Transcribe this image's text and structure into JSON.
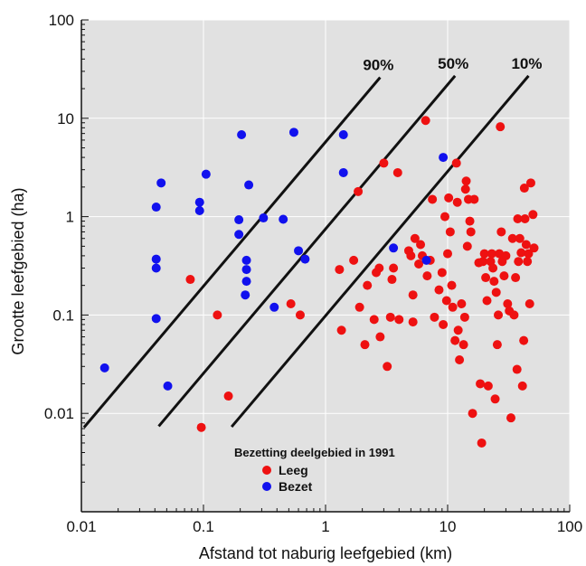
{
  "chart_data": {
    "type": "scatter",
    "xlabel": "Afstand tot naburig leefgebied (km)",
    "ylabel": "Grootte leefgebied (ha)",
    "x_scale": "log",
    "y_scale": "log",
    "xlim": [
      0.01,
      100
    ],
    "ylim": [
      0.001,
      100
    ],
    "x_ticks": [
      "0.01",
      "0.1",
      "1",
      "10",
      "100"
    ],
    "y_ticks": [
      "0.01",
      "0.1",
      "1",
      "10",
      "100"
    ],
    "grid": true,
    "legend": {
      "title": "Bezetting deelgebied in 1991",
      "placement": "bottom-center"
    },
    "reference_lines": [
      {
        "label": "90%",
        "points": [
          [
            0.0105,
            0.0072
          ],
          [
            2.8,
            26
          ]
        ]
      },
      {
        "label": "50%",
        "points": [
          [
            0.043,
            0.0074
          ],
          [
            11.5,
            27
          ]
        ]
      },
      {
        "label": "10%",
        "points": [
          [
            0.17,
            0.0073
          ],
          [
            46,
            27
          ]
        ]
      }
    ],
    "series": [
      {
        "name": "Leeg",
        "color": "#ee1111",
        "points": [
          [
            0.078,
            0.23
          ],
          [
            0.096,
            0.0072
          ],
          [
            0.13,
            0.1
          ],
          [
            0.16,
            0.015
          ],
          [
            0.52,
            0.13
          ],
          [
            0.62,
            0.1
          ],
          [
            1.3,
            0.29
          ],
          [
            1.35,
            0.07
          ],
          [
            1.7,
            0.36
          ],
          [
            1.85,
            1.8
          ],
          [
            1.9,
            0.12
          ],
          [
            2.1,
            0.05
          ],
          [
            2.2,
            0.2
          ],
          [
            2.5,
            0.09
          ],
          [
            2.6,
            0.27
          ],
          [
            2.75,
            0.3
          ],
          [
            2.8,
            0.06
          ],
          [
            3.0,
            3.5
          ],
          [
            3.2,
            0.03
          ],
          [
            3.4,
            0.095
          ],
          [
            3.6,
            0.3
          ],
          [
            3.9,
            2.8
          ],
          [
            3.5,
            0.23
          ],
          [
            4.0,
            0.09
          ],
          [
            4.8,
            0.45
          ],
          [
            5.0,
            0.4
          ],
          [
            5.2,
            0.16
          ],
          [
            5.2,
            0.085
          ],
          [
            5.4,
            0.6
          ],
          [
            5.8,
            0.33
          ],
          [
            6.0,
            0.52
          ],
          [
            6.2,
            0.4
          ],
          [
            6.6,
            9.5
          ],
          [
            6.8,
            0.25
          ],
          [
            7.2,
            0.36
          ],
          [
            7.5,
            1.5
          ],
          [
            7.8,
            0.095
          ],
          [
            8.5,
            0.18
          ],
          [
            9.0,
            0.27
          ],
          [
            9.2,
            0.08
          ],
          [
            9.5,
            1.0
          ],
          [
            9.8,
            0.14
          ],
          [
            10.0,
            0.42
          ],
          [
            10.2,
            1.55
          ],
          [
            10.5,
            0.7
          ],
          [
            10.8,
            0.2
          ],
          [
            11.0,
            0.12
          ],
          [
            11.5,
            0.055
          ],
          [
            11.8,
            3.5
          ],
          [
            12.0,
            1.4
          ],
          [
            12.2,
            0.07
          ],
          [
            12.5,
            0.035
          ],
          [
            13.0,
            0.13
          ],
          [
            13.5,
            0.05
          ],
          [
            13.8,
            0.095
          ],
          [
            14.0,
            1.9
          ],
          [
            14.2,
            2.3
          ],
          [
            14.5,
            0.5
          ],
          [
            14.8,
            1.5
          ],
          [
            15.2,
            0.9
          ],
          [
            15.5,
            0.7
          ],
          [
            16.0,
            0.01
          ],
          [
            16.5,
            1.5
          ],
          [
            18.0,
            0.34
          ],
          [
            18.5,
            0.02
          ],
          [
            19.0,
            0.005
          ],
          [
            19.5,
            0.35
          ],
          [
            20.0,
            0.42
          ],
          [
            20.5,
            0.24
          ],
          [
            21.0,
            0.14
          ],
          [
            21.5,
            0.019
          ],
          [
            22.5,
            0.35
          ],
          [
            23.0,
            0.42
          ],
          [
            23.5,
            0.3
          ],
          [
            24.0,
            0.22
          ],
          [
            24.5,
            0.014
          ],
          [
            25.0,
            0.17
          ],
          [
            25.5,
            0.05
          ],
          [
            26.0,
            0.1
          ],
          [
            26.5,
            0.42
          ],
          [
            27.0,
            8.2
          ],
          [
            27.5,
            0.7
          ],
          [
            28.0,
            0.35
          ],
          [
            29.0,
            0.25
          ],
          [
            30.0,
            0.4
          ],
          [
            31.0,
            0.13
          ],
          [
            32.0,
            0.11
          ],
          [
            33.0,
            0.009
          ],
          [
            34.0,
            0.6
          ],
          [
            35.0,
            0.1
          ],
          [
            36.0,
            0.24
          ],
          [
            37.0,
            0.028
          ],
          [
            37.5,
            0.95
          ],
          [
            38.0,
            0.35
          ],
          [
            39.0,
            0.6
          ],
          [
            40.0,
            0.43
          ],
          [
            41.0,
            0.019
          ],
          [
            42.0,
            0.055
          ],
          [
            42.5,
            1.95
          ],
          [
            43.0,
            0.95
          ],
          [
            44.0,
            0.52
          ],
          [
            45.0,
            0.35
          ],
          [
            46.0,
            0.42
          ],
          [
            47.0,
            0.13
          ],
          [
            48.0,
            2.2
          ],
          [
            50.0,
            1.05
          ],
          [
            51.0,
            0.48
          ]
        ]
      },
      {
        "name": "Bezet",
        "color": "#1111ee",
        "points": [
          [
            0.0155,
            0.029
          ],
          [
            0.041,
            1.25
          ],
          [
            0.041,
            0.37
          ],
          [
            0.041,
            0.3
          ],
          [
            0.041,
            0.092
          ],
          [
            0.045,
            2.2
          ],
          [
            0.051,
            0.019
          ],
          [
            0.093,
            1.4
          ],
          [
            0.093,
            1.15
          ],
          [
            0.105,
            2.7
          ],
          [
            0.195,
            0.93
          ],
          [
            0.195,
            0.66
          ],
          [
            0.205,
            6.8
          ],
          [
            0.22,
            0.16
          ],
          [
            0.225,
            0.22
          ],
          [
            0.225,
            0.29
          ],
          [
            0.225,
            0.36
          ],
          [
            0.235,
            2.1
          ],
          [
            0.31,
            0.97
          ],
          [
            0.38,
            0.12
          ],
          [
            0.45,
            0.94
          ],
          [
            0.55,
            7.2
          ],
          [
            0.6,
            0.45
          ],
          [
            0.68,
            0.37
          ],
          [
            1.4,
            6.8
          ],
          [
            1.4,
            2.8
          ],
          [
            3.6,
            0.48
          ],
          [
            6.7,
            0.36
          ],
          [
            9.2,
            4.0
          ]
        ]
      }
    ]
  }
}
